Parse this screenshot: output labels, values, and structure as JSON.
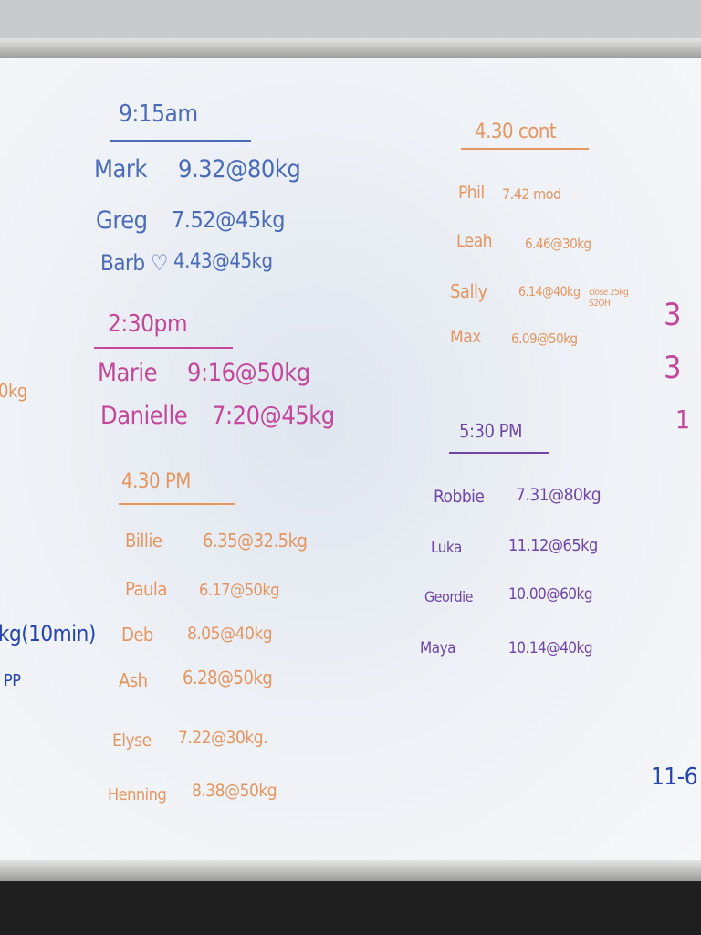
{
  "sections": [
    {
      "heading": "9:15am",
      "entries": [
        {
          "name": "Mark",
          "result": "9.32@80kg"
        },
        {
          "name": "Greg",
          "result": "7.52@45kg"
        },
        {
          "name": "Barb ♡",
          "result": "4.43@45kg"
        }
      ]
    },
    {
      "heading": "2:30pm",
      "entries": [
        {
          "name": "Marie",
          "result": "9:16@50kg"
        },
        {
          "name": "Danielle",
          "result": "7:20@45kg"
        }
      ]
    },
    {
      "heading": "4.30 PM",
      "entries": [
        {
          "name": "Billie",
          "result": "6.35@32.5kg"
        },
        {
          "name": "Paula",
          "result": "6.17@50kg"
        },
        {
          "name": "Deb",
          "result": "8.05@40kg"
        },
        {
          "name": "Ash",
          "result": "6.28@50kg"
        },
        {
          "name": "Elyse",
          "result": "7.22@30kg."
        },
        {
          "name": "Henning",
          "result": "8.38@50kg"
        }
      ]
    },
    {
      "heading": "4.30 cont",
      "entries": [
        {
          "name": "Phil",
          "result": "7.42 mod"
        },
        {
          "name": "Leah",
          "result": "6.46@30kg"
        },
        {
          "name": "Sally",
          "result": "6.14@40kg",
          "note": "close 25kg S2OH"
        },
        {
          "name": "Max",
          "result": "6.09@50kg"
        }
      ]
    },
    {
      "heading": "5:30 PM",
      "entries": [
        {
          "name": "Robbie",
          "result": "7.31@80kg"
        },
        {
          "name": "Luka",
          "result": "11.12@65kg"
        },
        {
          "name": "Geordie",
          "result": "10.00@60kg"
        },
        {
          "name": "Maya",
          "result": "10.14@40kg"
        }
      ]
    }
  ],
  "left_edge": [
    "0kg",
    "kg(10min)",
    "PP"
  ],
  "right_edge": [
    "3",
    "3",
    "1",
    "11-6"
  ]
}
